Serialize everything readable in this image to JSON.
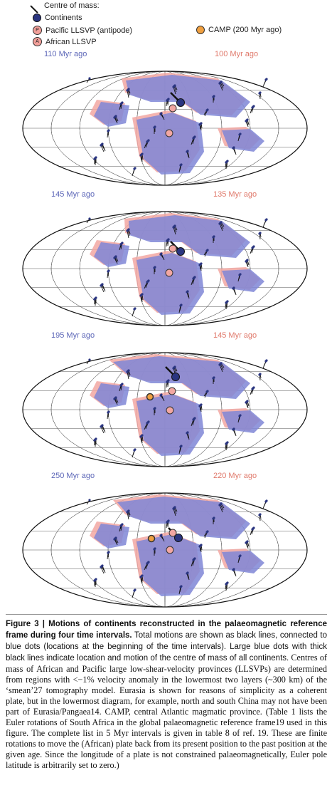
{
  "legend": {
    "title": "Centre of mass:",
    "continents": "Continents",
    "pacific": "Pacific LLSVP (antipode)",
    "african": "African LLSVP",
    "camp": "CAMP (200 Myr ago)",
    "pacific_symbol": "P",
    "african_symbol": "A"
  },
  "panels": [
    {
      "left_age": "110 Myr ago",
      "right_age": "100 Myr ago"
    },
    {
      "left_age": "145 Myr ago",
      "right_age": "135 Myr ago"
    },
    {
      "left_age": "195 Myr ago",
      "right_age": "145 Myr ago"
    },
    {
      "left_age": "250 Myr ago",
      "right_age": "220 Myr ago"
    }
  ],
  "caption": {
    "label": "Figure 3 | Motions of continents reconstructed in the palaeomagnetic reference frame during four time intervals.",
    "body": "Total motions are shown as black lines, connected to blue dots (locations at the beginning of the time intervals). Large blue dots with thick black lines indicate location and motion of the centre of mass of all continents.",
    "rest": "Centres of mass of African and Pacific large low-shear-velocity provinces (LLSVPs) are determined from regions with <−1% velocity anomaly in the lowermost two layers (~300 km) of the ‘smean’27 tomography model. Eurasia is shown for reasons of simplicity as a coherent plate, but in the lowermost diagram, for example, north and south China may not have been part of Eurasia/Pangaea14. CAMP, central Atlantic magmatic province. (Table 1 lists the Euler rotations of South Africa in the global palaeomagnetic reference frame19 used in this figure. The complete list in 5 Myr intervals is given in table 8 of ref. 19. These are finite rotations to move the (African) plate back from its present position to the past position at the given age. Since the longitude of a plate is not constrained palaeomagnetically, Euler pole latitude is arbitrarily set to zero.)"
  },
  "colors": {
    "blue_continents": "#7f86d6",
    "pink_continents": "#f2a7a2",
    "centre_dot": "#2a3580",
    "camp": "#f0a040"
  }
}
